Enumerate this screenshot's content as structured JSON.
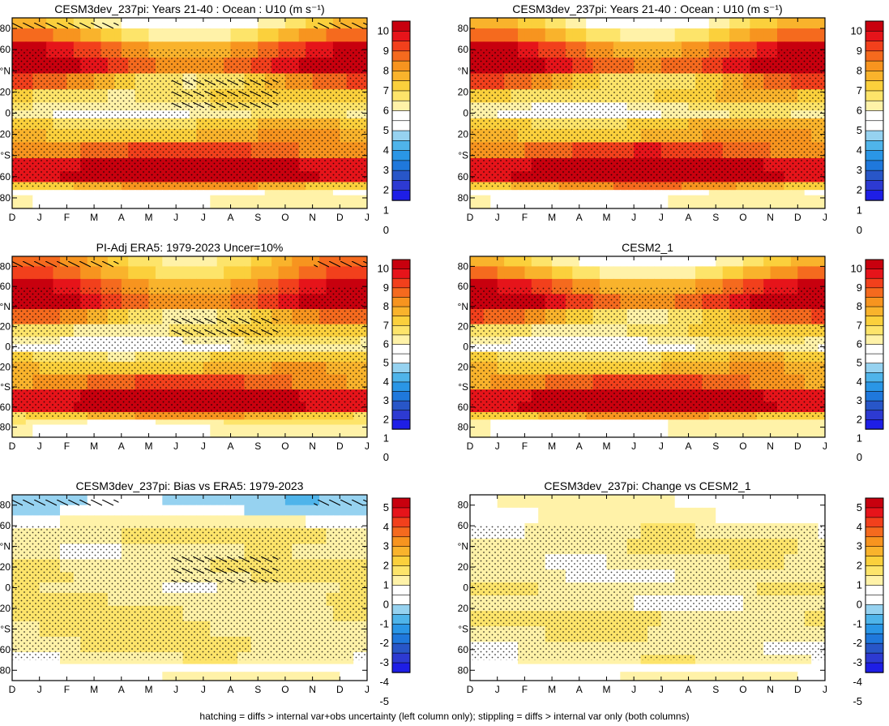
{
  "footer_note": "hatching = diffs > internal var+obs uncertainty (left column only); stippling = diffs > internal var only (both columns)",
  "colorbars": {
    "absolute": {
      "labels": [
        "10",
        "9",
        "8",
        "7",
        "6",
        "5",
        "4",
        "3",
        "2",
        "1",
        "0"
      ],
      "colors": [
        "#c8000e",
        "#e6141a",
        "#f2401c",
        "#f56a1e",
        "#f7941f",
        "#f9b32c",
        "#fbd03c",
        "#fde46a",
        "#fff2a8",
        "#ffffff",
        "#ffffff",
        "#96d2f0",
        "#4fb4ea",
        "#2a96e6",
        "#1f78dc",
        "#2856c8",
        "#2d3ad2",
        "#1e1ee6"
      ]
    },
    "difference": {
      "labels": [
        "5",
        "4",
        "3",
        "2",
        "1",
        "0",
        "-1",
        "-2",
        "-3",
        "-4",
        "-5"
      ],
      "colors": [
        "#c8000e",
        "#e6141a",
        "#f2401c",
        "#f56a1e",
        "#f7941f",
        "#f9b32c",
        "#fbd03c",
        "#fde46a",
        "#fff2a8",
        "#ffffff",
        "#ffffff",
        "#96d2f0",
        "#4fb4ea",
        "#2a96e6",
        "#1f78dc",
        "#2856c8",
        "#2d3ad2",
        "#1e1ee6"
      ]
    }
  },
  "chart_data": [
    {
      "type": "heatmap",
      "panel": "top-left",
      "title": "CESM3dev_237pi: Years 21-40 : Ocean : U10 (m s⁻¹)",
      "x_tick_labels": [
        "D",
        "J",
        "F",
        "M",
        "A",
        "M",
        "J",
        "J",
        "A",
        "S",
        "O",
        "N",
        "D",
        "J"
      ],
      "y_tick_labels": [
        "80",
        "60",
        "°N",
        "20",
        "0",
        "20",
        "°S",
        "60",
        "80"
      ],
      "ylim": [
        -90,
        90
      ],
      "hatching": true,
      "stippling": true,
      "colorbar": "absolute",
      "bands": [
        {
          "lat": 85,
          "value": 5.5
        },
        {
          "lat": 75,
          "value": 6.8
        },
        {
          "lat": 60,
          "value": 8.6
        },
        {
          "lat": 45,
          "value": 9.4
        },
        {
          "lat": 30,
          "value": 7.2
        },
        {
          "lat": 15,
          "value": 6.2
        },
        {
          "lat": 5,
          "value": 5.6
        },
        {
          "lat": 0,
          "value": 5.2
        },
        {
          "lat": -10,
          "value": 6.4
        },
        {
          "lat": -20,
          "value": 7.0
        },
        {
          "lat": -35,
          "value": 8.3
        },
        {
          "lat": -50,
          "value": 10.2
        },
        {
          "lat": -60,
          "value": 10.4
        },
        {
          "lat": -70,
          "value": 7.2
        },
        {
          "lat": -75,
          "value": 4.5
        },
        {
          "lat": -80,
          "value": 5.0
        }
      ]
    },
    {
      "type": "heatmap",
      "panel": "top-right",
      "title": "CESM3dev_237pi: Years 21-40 : Ocean : U10 (m s⁻¹)",
      "x_tick_labels": [
        "D",
        "J",
        "F",
        "M",
        "A",
        "M",
        "J",
        "J",
        "A",
        "S",
        "O",
        "N",
        "D",
        "J"
      ],
      "y_tick_labels": [
        "80",
        "60",
        "°N",
        "20",
        "0",
        "20",
        "°S",
        "60",
        "80"
      ],
      "ylim": [
        -90,
        90
      ],
      "hatching": false,
      "stippling": true,
      "colorbar": "absolute",
      "bands": [
        {
          "lat": 85,
          "value": 5.8
        },
        {
          "lat": 75,
          "value": 7.0
        },
        {
          "lat": 60,
          "value": 8.8
        },
        {
          "lat": 45,
          "value": 9.6
        },
        {
          "lat": 30,
          "value": 7.3
        },
        {
          "lat": 15,
          "value": 6.4
        },
        {
          "lat": 5,
          "value": 5.4
        },
        {
          "lat": 0,
          "value": 5.1
        },
        {
          "lat": -10,
          "value": 6.6
        },
        {
          "lat": -20,
          "value": 7.1
        },
        {
          "lat": -35,
          "value": 8.5
        },
        {
          "lat": -50,
          "value": 10.3
        },
        {
          "lat": -60,
          "value": 10.5
        },
        {
          "lat": -70,
          "value": 7.4
        },
        {
          "lat": -75,
          "value": 4.6
        },
        {
          "lat": -80,
          "value": 5.0
        }
      ]
    },
    {
      "type": "heatmap",
      "panel": "middle-left",
      "title": "PI-Adj ERA5: 1979-2023 Uncer=10%",
      "x_tick_labels": [
        "D",
        "J",
        "F",
        "M",
        "A",
        "M",
        "J",
        "J",
        "A",
        "S",
        "O",
        "N",
        "D",
        "J"
      ],
      "y_tick_labels": [
        "80",
        "60",
        "°N",
        "20",
        "0",
        "20",
        "°S",
        "60",
        "80"
      ],
      "ylim": [
        -90,
        90
      ],
      "hatching": true,
      "stippling": true,
      "colorbar": "absolute",
      "bands": [
        {
          "lat": 85,
          "value": 7.0
        },
        {
          "lat": 75,
          "value": 7.5
        },
        {
          "lat": 60,
          "value": 8.7
        },
        {
          "lat": 45,
          "value": 9.3
        },
        {
          "lat": 30,
          "value": 7.0
        },
        {
          "lat": 15,
          "value": 6.0
        },
        {
          "lat": 5,
          "value": 5.3
        },
        {
          "lat": 0,
          "value": 4.8
        },
        {
          "lat": -10,
          "value": 6.2
        },
        {
          "lat": -20,
          "value": 6.9
        },
        {
          "lat": -35,
          "value": 8.2
        },
        {
          "lat": -50,
          "value": 10.2
        },
        {
          "lat": -60,
          "value": 10.3
        },
        {
          "lat": -70,
          "value": 7.0
        },
        {
          "lat": -75,
          "value": 5.5
        },
        {
          "lat": -80,
          "value": 5.0
        }
      ]
    },
    {
      "type": "heatmap",
      "panel": "middle-right",
      "title": "CESM2_1",
      "x_tick_labels": [
        "D",
        "J",
        "F",
        "M",
        "A",
        "M",
        "J",
        "J",
        "A",
        "S",
        "O",
        "N",
        "D",
        "J"
      ],
      "y_tick_labels": [
        "80",
        "60",
        "°N",
        "20",
        "0",
        "20",
        "°S",
        "60",
        "80"
      ],
      "ylim": [
        -90,
        90
      ],
      "hatching": false,
      "stippling": true,
      "colorbar": "absolute",
      "bands": [
        {
          "lat": 85,
          "value": 5.5
        },
        {
          "lat": 75,
          "value": 6.6
        },
        {
          "lat": 60,
          "value": 8.5
        },
        {
          "lat": 45,
          "value": 9.5
        },
        {
          "lat": 30,
          "value": 7.1
        },
        {
          "lat": 15,
          "value": 6.0
        },
        {
          "lat": 5,
          "value": 5.2
        },
        {
          "lat": 0,
          "value": 4.7
        },
        {
          "lat": -10,
          "value": 6.3
        },
        {
          "lat": -20,
          "value": 6.9
        },
        {
          "lat": -35,
          "value": 8.2
        },
        {
          "lat": -50,
          "value": 10.3
        },
        {
          "lat": -60,
          "value": 10.4
        },
        {
          "lat": -70,
          "value": 7.1
        },
        {
          "lat": -75,
          "value": 5.0
        },
        {
          "lat": -80,
          "value": 5.0
        }
      ]
    },
    {
      "type": "heatmap",
      "panel": "bottom-left",
      "title": "CESM3dev_237pi: Bias vs ERA5: 1979-2023",
      "x_tick_labels": [
        "D",
        "J",
        "F",
        "M",
        "A",
        "M",
        "J",
        "J",
        "A",
        "S",
        "O",
        "N",
        "D",
        "J"
      ],
      "y_tick_labels": [
        "80",
        "60",
        "°N",
        "20",
        "0",
        "20",
        "°S",
        "60",
        "80"
      ],
      "ylim": [
        -90,
        90
      ],
      "hatching": true,
      "stippling": true,
      "colorbar": "difference",
      "bands": [
        {
          "lat": 85,
          "value": -1.5
        },
        {
          "lat": 75,
          "value": -1.2
        },
        {
          "lat": 65,
          "value": 0.2
        },
        {
          "lat": 50,
          "value": 0.7
        },
        {
          "lat": 35,
          "value": 0.3
        },
        {
          "lat": 20,
          "value": 0.7
        },
        {
          "lat": 10,
          "value": 0.6
        },
        {
          "lat": 0,
          "value": 0.3
        },
        {
          "lat": -10,
          "value": 0.5
        },
        {
          "lat": -25,
          "value": 0.7
        },
        {
          "lat": -40,
          "value": 0.6
        },
        {
          "lat": -55,
          "value": 0.6
        },
        {
          "lat": -70,
          "value": 0.3
        },
        {
          "lat": -78,
          "value": -0.8
        },
        {
          "lat": -85,
          "value": 0.0
        }
      ]
    },
    {
      "type": "heatmap",
      "panel": "bottom-right",
      "title": "CESM3dev_237pi: Change vs CESM2_1",
      "x_tick_labels": [
        "D",
        "J",
        "F",
        "M",
        "A",
        "M",
        "J",
        "J",
        "A",
        "S",
        "O",
        "N",
        "D",
        "J"
      ],
      "y_tick_labels": [
        "80",
        "60",
        "°N",
        "20",
        "0",
        "20",
        "°S",
        "60",
        "80"
      ],
      "ylim": [
        -90,
        90
      ],
      "hatching": false,
      "stippling": true,
      "colorbar": "difference",
      "bands": [
        {
          "lat": 85,
          "value": 0.0
        },
        {
          "lat": 70,
          "value": 0.0
        },
        {
          "lat": 55,
          "value": 0.3
        },
        {
          "lat": 40,
          "value": 0.6
        },
        {
          "lat": 25,
          "value": 0.3
        },
        {
          "lat": 10,
          "value": 0.2
        },
        {
          "lat": 0,
          "value": 0.5
        },
        {
          "lat": -15,
          "value": 0.2
        },
        {
          "lat": -30,
          "value": 0.7
        },
        {
          "lat": -45,
          "value": 0.4
        },
        {
          "lat": -60,
          "value": 0.2
        },
        {
          "lat": -70,
          "value": 0.3
        },
        {
          "lat": -78,
          "value": -0.7
        },
        {
          "lat": -85,
          "value": 0.0
        }
      ]
    }
  ]
}
